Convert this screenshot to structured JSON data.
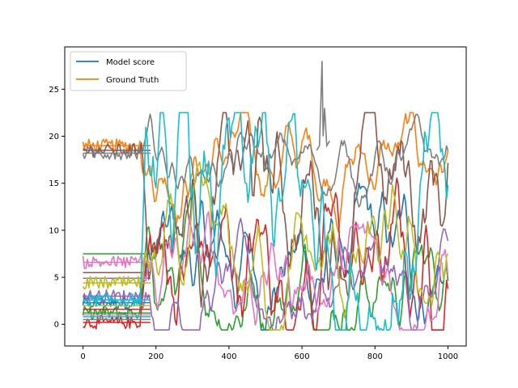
{
  "chart_data": {
    "type": "line",
    "title": "",
    "xlabel": "",
    "ylabel": "",
    "xlim": [
      -50,
      1050
    ],
    "ylim": [
      -2.3,
      29.5
    ],
    "x_ticks": [
      0,
      200,
      400,
      600,
      800,
      1000
    ],
    "y_ticks": [
      0,
      5,
      10,
      15,
      20,
      25
    ],
    "grid": false,
    "legend": {
      "placement": "top-left",
      "entries": [
        {
          "name": "Model score",
          "color": "#1f77b4"
        },
        {
          "name": "Ground Truth",
          "color": "#ff7f0e"
        }
      ]
    },
    "palette": [
      "#1f77b4",
      "#ff7f0e",
      "#2ca02c",
      "#d62728",
      "#9467bd",
      "#8c564b",
      "#e377c2",
      "#7f7f7f",
      "#bcbd22",
      "#17becf"
    ],
    "n_samples": 1000,
    "series": [
      {
        "name": "Model score",
        "color": "#1f77b4",
        "pre": [
          [
            0,
            2.3
          ]
        ],
        "base": 6.5,
        "amp": 3.5,
        "lowcut": 0,
        "highcut": 0
      },
      {
        "name": "Ground Truth",
        "color": "#ff7f0e",
        "pre": [
          [
            0,
            19.0
          ]
        ],
        "base": 17.5,
        "amp": 2.5,
        "lowcut": 0,
        "highcut": 0
      },
      {
        "color": "#2ca02c",
        "pre": [
          [
            0,
            1.2
          ],
          [
            0,
            7.5
          ]
        ],
        "base": 4.5,
        "amp": 3.0,
        "lowcut": 0,
        "highcut": 0
      },
      {
        "color": "#d62728",
        "pre": [
          [
            0,
            0.2
          ],
          [
            0,
            1.6
          ]
        ],
        "base": 6.0,
        "amp": 4.5,
        "lowcut": 0,
        "highcut": 0
      },
      {
        "color": "#9467bd",
        "pre": [
          [
            0,
            3.0
          ],
          [
            0,
            4.9
          ]
        ],
        "base": 3.0,
        "amp": 2.5,
        "lowcut": 0,
        "highcut": 0
      },
      {
        "color": "#8c564b",
        "pre": [
          [
            0,
            18.5
          ],
          [
            0,
            5.5
          ]
        ],
        "base": 14.0,
        "amp": 5.0,
        "lowcut": 0,
        "highcut": 0
      },
      {
        "color": "#e377c2",
        "pre": [
          [
            0,
            6.6
          ],
          [
            0,
            1.0
          ]
        ],
        "base": 5.5,
        "amp": 3.0,
        "lowcut": 0,
        "highcut": 0
      },
      {
        "color": "#7f7f7f",
        "pre": [
          [
            0,
            18.2
          ],
          [
            0,
            0.5
          ]
        ],
        "base": 17.0,
        "amp": 1.8,
        "lowcut": 0,
        "highcut": 0
      },
      {
        "color": "#bcbd22",
        "pre": [
          [
            0,
            4.4
          ],
          [
            0,
            2.0
          ]
        ],
        "base": 5.0,
        "amp": 3.5,
        "lowcut": 0,
        "highcut": 0
      },
      {
        "color": "#17becf",
        "pre": [
          [
            0,
            2.6
          ],
          [
            0,
            0.8
          ]
        ],
        "base": 10.0,
        "amp": 6.5,
        "lowcut": 0,
        "highcut": 0
      }
    ]
  }
}
